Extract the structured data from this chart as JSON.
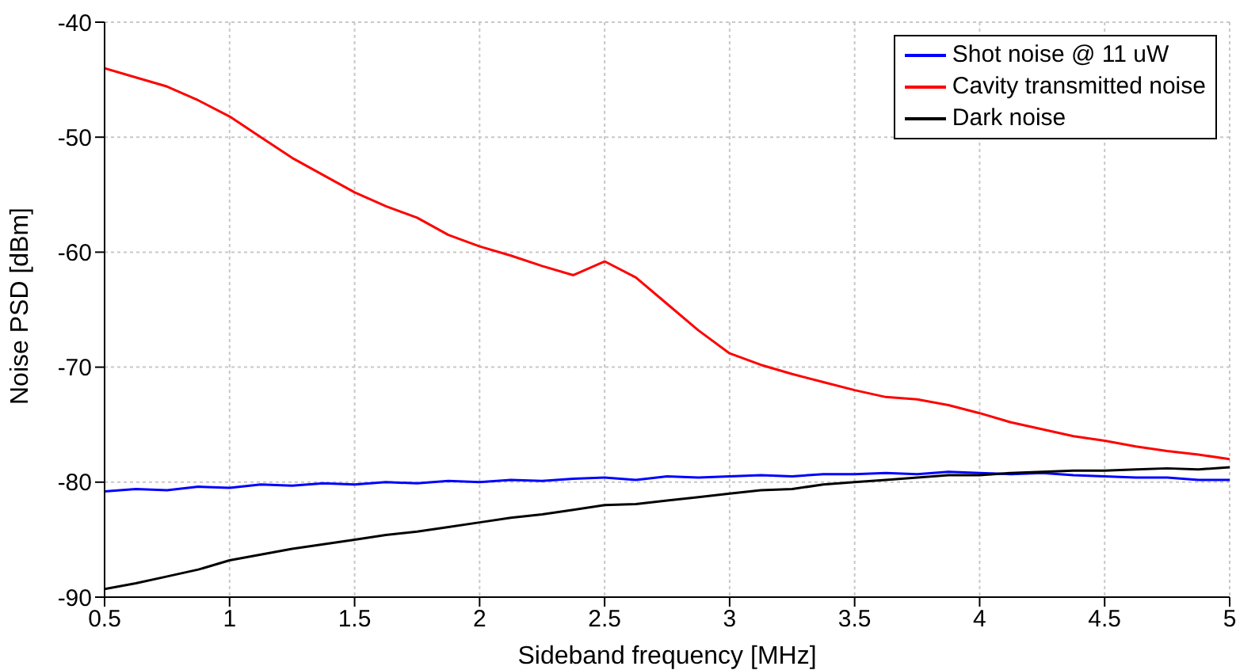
{
  "chart_data": {
    "type": "line",
    "xlabel": "Sideband frequency [MHz]",
    "ylabel": "Noise PSD [dBm]",
    "x": [
      0.5,
      0.625,
      0.75,
      0.875,
      1,
      1.125,
      1.25,
      1.375,
      1.5,
      1.625,
      1.75,
      1.875,
      2,
      2.125,
      2.25,
      2.375,
      2.5,
      2.625,
      2.75,
      2.875,
      3,
      3.125,
      3.25,
      3.375,
      3.5,
      3.625,
      3.75,
      3.875,
      4,
      4.125,
      4.25,
      4.375,
      4.5,
      4.625,
      4.75,
      4.875,
      5
    ],
    "series": [
      {
        "name": "Shot noise @ 11 uW",
        "color": "#0000ff",
        "values": [
          -80.8,
          -80.6,
          -80.7,
          -80.4,
          -80.5,
          -80.2,
          -80.3,
          -80.1,
          -80.2,
          -80,
          -80.1,
          -79.9,
          -80,
          -79.8,
          -79.9,
          -79.7,
          -79.6,
          -79.8,
          -79.5,
          -79.6,
          -79.5,
          -79.4,
          -79.5,
          -79.3,
          -79.3,
          -79.2,
          -79.3,
          -79.1,
          -79.2,
          -79.3,
          -79.2,
          -79.4,
          -79.5,
          -79.6,
          -79.6,
          -79.8,
          -79.8
        ]
      },
      {
        "name": "Cavity transmitted noise",
        "color": "#ff0000",
        "values": [
          -44,
          -44.8,
          -45.6,
          -46.8,
          -48.2,
          -50,
          -51.8,
          -53.3,
          -54.8,
          -56,
          -57,
          -58.5,
          -59.5,
          -60.3,
          -61.2,
          -62,
          -60.8,
          -62.2,
          -64.5,
          -66.8,
          -68.8,
          -69.8,
          -70.6,
          -71.3,
          -72,
          -72.6,
          -72.8,
          -73.3,
          -74,
          -74.8,
          -75.4,
          -76,
          -76.4,
          -76.9,
          -77.3,
          -77.6,
          -78
        ]
      },
      {
        "name": "Dark noise",
        "color": "#000000",
        "values": [
          -89.3,
          -88.8,
          -88.2,
          -87.6,
          -86.8,
          -86.3,
          -85.8,
          -85.4,
          -85,
          -84.6,
          -84.3,
          -83.9,
          -83.5,
          -83.1,
          -82.8,
          -82.4,
          -82,
          -81.9,
          -81.6,
          -81.3,
          -81,
          -80.7,
          -80.6,
          -80.2,
          -80,
          -79.8,
          -79.6,
          -79.4,
          -79.4,
          -79.2,
          -79.1,
          -79,
          -79,
          -78.9,
          -78.8,
          -78.9,
          -78.7
        ]
      }
    ],
    "xlim": [
      0.5,
      5
    ],
    "xticks": [
      0.5,
      1,
      1.5,
      2,
      2.5,
      3,
      3.5,
      4,
      4.5,
      5
    ],
    "ylim": [
      -90,
      -40
    ],
    "yticks": [
      -90,
      -80,
      -70,
      -60,
      -50,
      -40
    ],
    "grid": true,
    "legend": "top right",
    "marker": "none",
    "line_style": "solid"
  }
}
